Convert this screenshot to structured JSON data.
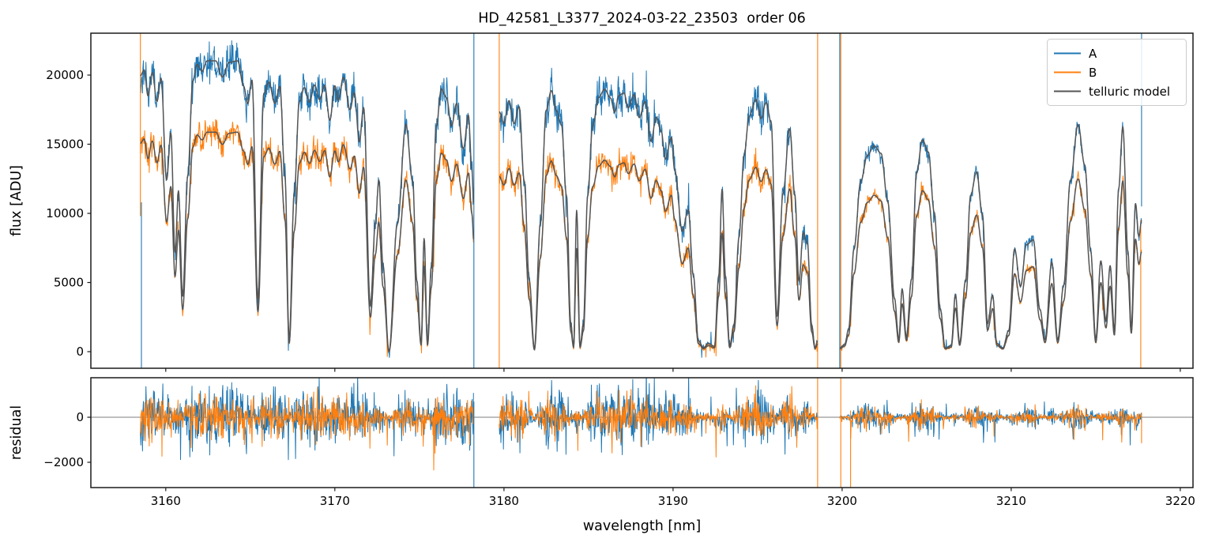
{
  "title": "HD_42581_L3377_2024-03-22_23503  order 06",
  "colors": {
    "A": "#1f77b4",
    "B": "#ff7f0e",
    "model": "#555555",
    "axis": "#1a1a1a",
    "zero_line": "#555555",
    "legend_border": "#cccccc"
  },
  "chart_data": {
    "type": "line",
    "title": "HD_42581_L3377_2024-03-22_23503  order 06",
    "xlabel": "wavelength [nm]",
    "ylabel_top": "flux [ADU]",
    "ylabel_bottom": "residual",
    "xlim": [
      3155.57,
      3220.75
    ],
    "ylim_flux": [
      -1200,
      23030
    ],
    "ylim_residual": [
      -3124,
      1755
    ],
    "xticks": [
      3160,
      3170,
      3180,
      3190,
      3200,
      3210,
      3220
    ],
    "yticks_flux": [
      0,
      5000,
      10000,
      15000,
      20000
    ],
    "yticks_residual": [
      -2000,
      0
    ],
    "ytick_labels_residual": [
      "−2000",
      "0"
    ],
    "grid": false,
    "legend_position": "upper right",
    "legend": [
      {
        "name": "A",
        "color": "#1f77b4"
      },
      {
        "name": "B",
        "color": "#ff7f0e"
      },
      {
        "name": "telluric model",
        "color": "#555555"
      }
    ],
    "noise_seed": 42,
    "segments": [
      {
        "x_range": [
          3158.5,
          3178.22
        ],
        "b_to_a_ratio": 0.755,
        "noise_scale": 1.0,
        "continuum_A": [
          [
            3158.5,
            21000
          ],
          [
            3160.0,
            21050
          ],
          [
            3161.5,
            21250
          ],
          [
            3162.2,
            21350
          ],
          [
            3165.0,
            21350
          ],
          [
            3166.6,
            21100
          ],
          [
            3168.0,
            21000
          ],
          [
            3170.0,
            20900
          ],
          [
            3172.0,
            20750
          ],
          [
            3174.0,
            20550
          ],
          [
            3176.0,
            20450
          ],
          [
            3178.22,
            20350
          ]
        ],
        "transmission": [
          [
            3158.5,
            0.95
          ],
          [
            3158.72,
            0.97
          ],
          [
            3158.95,
            0.88
          ],
          [
            3159.2,
            0.96
          ],
          [
            3159.48,
            0.86
          ],
          [
            3159.72,
            0.94
          ],
          [
            3160.05,
            0.59
          ],
          [
            3160.3,
            0.75
          ],
          [
            3160.55,
            0.34
          ],
          [
            3160.75,
            0.55
          ],
          [
            3161.0,
            0.19
          ],
          [
            3161.3,
            0.6
          ],
          [
            3161.6,
            0.92
          ],
          [
            3161.85,
            0.975
          ],
          [
            3162.15,
            0.95
          ],
          [
            3162.45,
            0.985
          ],
          [
            3162.95,
            0.985
          ],
          [
            3163.35,
            0.93
          ],
          [
            3163.75,
            0.98
          ],
          [
            3164.25,
            0.985
          ],
          [
            3164.6,
            0.9
          ],
          [
            3164.85,
            0.84
          ],
          [
            3165.1,
            0.92
          ],
          [
            3165.45,
            0.18
          ],
          [
            3165.8,
            0.88
          ],
          [
            3166.1,
            0.92
          ],
          [
            3166.45,
            0.85
          ],
          [
            3166.75,
            0.91
          ],
          [
            3167.05,
            0.6
          ],
          [
            3167.3,
            0.04
          ],
          [
            3167.6,
            0.55
          ],
          [
            3167.9,
            0.86
          ],
          [
            3168.2,
            0.91
          ],
          [
            3168.5,
            0.86
          ],
          [
            3168.8,
            0.92
          ],
          [
            3169.1,
            0.87
          ],
          [
            3169.4,
            0.92
          ],
          [
            3169.7,
            0.8
          ],
          [
            3170.0,
            0.92
          ],
          [
            3170.2,
            0.87
          ],
          [
            3170.5,
            0.95
          ],
          [
            3170.9,
            0.84
          ],
          [
            3171.15,
            0.9
          ],
          [
            3171.45,
            0.73
          ],
          [
            3171.7,
            0.85
          ],
          [
            3172.1,
            0.16
          ],
          [
            3172.4,
            0.45
          ],
          [
            3172.6,
            0.6
          ],
          [
            3172.85,
            0.3
          ],
          [
            3173.2,
            0.0
          ],
          [
            3173.7,
            0.45
          ],
          [
            3174.2,
            0.8
          ],
          [
            3174.6,
            0.6
          ],
          [
            3174.85,
            0.25
          ],
          [
            3175.1,
            0.03
          ],
          [
            3175.28,
            0.4
          ],
          [
            3175.48,
            0.03
          ],
          [
            3175.7,
            0.3
          ],
          [
            3176.0,
            0.8
          ],
          [
            3176.3,
            0.93
          ],
          [
            3176.6,
            0.9
          ],
          [
            3176.9,
            0.8
          ],
          [
            3177.2,
            0.88
          ],
          [
            3177.6,
            0.72
          ],
          [
            3177.9,
            0.84
          ],
          [
            3178.1,
            0.65
          ],
          [
            3178.22,
            0.52
          ]
        ]
      },
      {
        "x_range": [
          3179.72,
          3198.55
        ],
        "b_to_a_ratio": 0.73,
        "noise_scale": 1.0,
        "continuum_A": [
          [
            3179.72,
            20650
          ],
          [
            3182.0,
            20550
          ],
          [
            3185.0,
            20450
          ],
          [
            3187.0,
            20350
          ],
          [
            3189.0,
            19950
          ],
          [
            3191.0,
            19750
          ],
          [
            3193.0,
            19550
          ],
          [
            3195.0,
            19850
          ],
          [
            3197.0,
            19650
          ],
          [
            3198.55,
            19450
          ]
        ],
        "transmission": [
          [
            3179.72,
            0.84
          ],
          [
            3180.0,
            0.8
          ],
          [
            3180.3,
            0.88
          ],
          [
            3180.6,
            0.8
          ],
          [
            3180.9,
            0.86
          ],
          [
            3181.2,
            0.6
          ],
          [
            3181.5,
            0.25
          ],
          [
            3181.8,
            0.01
          ],
          [
            3182.15,
            0.45
          ],
          [
            3182.5,
            0.85
          ],
          [
            3182.8,
            0.92
          ],
          [
            3183.1,
            0.85
          ],
          [
            3183.4,
            0.8
          ],
          [
            3183.7,
            0.55
          ],
          [
            3183.95,
            0.1
          ],
          [
            3184.12,
            0.02
          ],
          [
            3184.3,
            0.5
          ],
          [
            3184.5,
            0.02
          ],
          [
            3184.7,
            0.1
          ],
          [
            3184.95,
            0.55
          ],
          [
            3185.25,
            0.8
          ],
          [
            3185.6,
            0.9
          ],
          [
            3185.95,
            0.93
          ],
          [
            3186.3,
            0.9
          ],
          [
            3186.55,
            0.85
          ],
          [
            3186.8,
            0.91
          ],
          [
            3187.1,
            0.92
          ],
          [
            3187.35,
            0.87
          ],
          [
            3187.7,
            0.92
          ],
          [
            3188.0,
            0.84
          ],
          [
            3188.35,
            0.9
          ],
          [
            3188.7,
            0.76
          ],
          [
            3189.0,
            0.85
          ],
          [
            3189.3,
            0.8
          ],
          [
            3189.55,
            0.7
          ],
          [
            3189.9,
            0.78
          ],
          [
            3190.1,
            0.66
          ],
          [
            3190.55,
            0.44
          ],
          [
            3190.9,
            0.52
          ],
          [
            3191.2,
            0.28
          ],
          [
            3191.5,
            0.04
          ],
          [
            3191.8,
            0.015
          ],
          [
            3192.1,
            0.03
          ],
          [
            3192.45,
            0.02
          ],
          [
            3192.7,
            0.28
          ],
          [
            3192.9,
            0.6
          ],
          [
            3193.1,
            0.28
          ],
          [
            3193.35,
            0.02
          ],
          [
            3193.6,
            0.1
          ],
          [
            3193.9,
            0.42
          ],
          [
            3194.2,
            0.72
          ],
          [
            3194.5,
            0.86
          ],
          [
            3194.9,
            0.92
          ],
          [
            3195.2,
            0.85
          ],
          [
            3195.5,
            0.91
          ],
          [
            3195.8,
            0.84
          ],
          [
            3196.15,
            0.13
          ],
          [
            3196.5,
            0.58
          ],
          [
            3196.9,
            0.82
          ],
          [
            3197.2,
            0.58
          ],
          [
            3197.45,
            0.26
          ],
          [
            3197.7,
            0.44
          ],
          [
            3197.95,
            0.4
          ],
          [
            3198.2,
            0.1
          ],
          [
            3198.4,
            0.015
          ],
          [
            3198.55,
            0.04
          ]
        ]
      },
      {
        "x_range": [
          3199.86,
          3217.71
        ],
        "b_to_a_ratio": 0.76,
        "noise_scale": 0.55,
        "continuum_A": [
          [
            3199.86,
            17700
          ],
          [
            3202.0,
            17500
          ],
          [
            3205.0,
            17400
          ],
          [
            3208.0,
            17100
          ],
          [
            3211.0,
            16800
          ],
          [
            3214.0,
            17300
          ],
          [
            3217.71,
            17300
          ]
        ],
        "transmission": [
          [
            3199.86,
            0.015
          ],
          [
            3200.15,
            0.03
          ],
          [
            3200.38,
            0.09
          ],
          [
            3200.7,
            0.42
          ],
          [
            3201.1,
            0.7
          ],
          [
            3201.5,
            0.81
          ],
          [
            3201.9,
            0.85
          ],
          [
            3202.3,
            0.82
          ],
          [
            3202.7,
            0.62
          ],
          [
            3203.1,
            0.22
          ],
          [
            3203.35,
            0.05
          ],
          [
            3203.55,
            0.26
          ],
          [
            3203.8,
            0.06
          ],
          [
            3204.1,
            0.3
          ],
          [
            3204.4,
            0.74
          ],
          [
            3204.75,
            0.88
          ],
          [
            3205.1,
            0.83
          ],
          [
            3205.45,
            0.58
          ],
          [
            3205.8,
            0.18
          ],
          [
            3206.1,
            0.015
          ],
          [
            3206.45,
            0.025
          ],
          [
            3206.7,
            0.24
          ],
          [
            3206.95,
            0.035
          ],
          [
            3207.3,
            0.3
          ],
          [
            3207.6,
            0.66
          ],
          [
            3207.95,
            0.76
          ],
          [
            3208.3,
            0.58
          ],
          [
            3208.6,
            0.12
          ],
          [
            3208.9,
            0.24
          ],
          [
            3209.15,
            0.035
          ],
          [
            3209.5,
            0.015
          ],
          [
            3209.85,
            0.09
          ],
          [
            3210.2,
            0.44
          ],
          [
            3210.55,
            0.28
          ],
          [
            3210.9,
            0.46
          ],
          [
            3211.3,
            0.48
          ],
          [
            3211.7,
            0.18
          ],
          [
            3212.0,
            0.05
          ],
          [
            3212.4,
            0.38
          ],
          [
            3212.75,
            0.05
          ],
          [
            3213.1,
            0.28
          ],
          [
            3213.5,
            0.72
          ],
          [
            3213.95,
            0.95
          ],
          [
            3214.35,
            0.78
          ],
          [
            3214.7,
            0.42
          ],
          [
            3215.0,
            0.05
          ],
          [
            3215.3,
            0.38
          ],
          [
            3215.6,
            0.13
          ],
          [
            3215.85,
            0.36
          ],
          [
            3216.1,
            0.09
          ],
          [
            3216.35,
            0.68
          ],
          [
            3216.6,
            0.94
          ],
          [
            3216.9,
            0.42
          ],
          [
            3217.1,
            0.1
          ],
          [
            3217.35,
            0.62
          ],
          [
            3217.55,
            0.48
          ],
          [
            3217.71,
            0.55
          ]
        ]
      }
    ],
    "flux_edge_spikes": [
      [
        3158.5,
        "B",
        23030,
        9800
      ],
      [
        3158.56,
        "A",
        10800,
        -1200
      ],
      [
        3178.22,
        "A",
        23030,
        -1200
      ],
      [
        3179.72,
        "B",
        23030,
        -1200
      ],
      [
        3198.55,
        "B",
        23030,
        -1200
      ],
      [
        3199.86,
        "A",
        23030,
        -1200
      ],
      [
        3199.92,
        "B",
        23030,
        -1200
      ],
      [
        3217.71,
        "A",
        23030,
        10500
      ],
      [
        3217.66,
        "B",
        9500,
        -1200
      ]
    ],
    "residual_edge_spikes": [
      [
        3178.22,
        "A",
        700,
        -3124
      ],
      [
        3198.55,
        "B",
        1755,
        -3124
      ],
      [
        3199.92,
        "B",
        1755,
        -3124
      ],
      [
        3200.5,
        "B",
        300,
        -3124
      ],
      [
        3217.71,
        "B",
        200,
        -1150
      ]
    ],
    "residual_zero_line": true
  }
}
